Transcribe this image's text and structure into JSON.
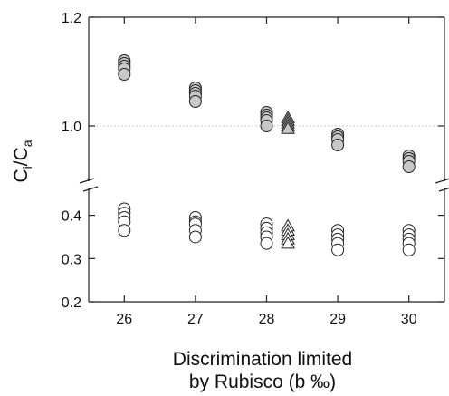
{
  "chart_data": {
    "type": "scatter",
    "title": "",
    "xlabel_line1": "Discrimination limited",
    "xlabel_line2": "by Rubisco (b ‰)",
    "ylabel_main": "C",
    "ylabel_sub1": "i",
    "ylabel_slash": "/C",
    "ylabel_sub2": "a",
    "x_ticks": [
      "26",
      "27",
      "28",
      "29",
      "30"
    ],
    "x_tick_values": [
      26,
      27,
      28,
      29,
      30
    ],
    "xlim": [
      25.5,
      30.5
    ],
    "upper_panel": {
      "ylim": [
        0.9,
        1.2
      ],
      "y_ticks": [
        "1.0",
        "1.2"
      ],
      "y_tick_values": [
        1.0,
        1.2
      ],
      "reference_line": 1.0
    },
    "lower_panel": {
      "ylim": [
        0.2,
        0.46
      ],
      "y_ticks": [
        "0.2",
        "0.3",
        "0.4"
      ],
      "y_tick_values": [
        0.2,
        0.3,
        0.4
      ]
    },
    "grid": false,
    "axis_break": true,
    "series": [
      {
        "marker": "circle",
        "fill": "#c8c8c8",
        "panel": "upper",
        "points": [
          [
            26,
            1.12
          ],
          [
            26,
            1.115
          ],
          [
            26,
            1.11
          ],
          [
            26,
            1.105
          ],
          [
            26,
            1.095
          ],
          [
            27,
            1.07
          ],
          [
            27,
            1.065
          ],
          [
            27,
            1.06
          ],
          [
            27,
            1.055
          ],
          [
            27,
            1.045
          ],
          [
            28,
            1.025
          ],
          [
            28,
            1.02
          ],
          [
            28,
            1.015
          ],
          [
            28,
            1.01
          ],
          [
            28,
            1.0
          ],
          [
            29,
            0.985
          ],
          [
            29,
            0.98
          ],
          [
            29,
            0.975
          ],
          [
            29,
            0.965
          ],
          [
            30,
            0.945
          ],
          [
            30,
            0.94
          ],
          [
            30,
            0.935
          ],
          [
            30,
            0.925
          ]
        ]
      },
      {
        "marker": "triangle",
        "fill": "#c8c8c8",
        "panel": "upper",
        "points": [
          [
            28.3,
            1.015
          ],
          [
            28.3,
            1.01
          ],
          [
            28.3,
            1.005
          ],
          [
            28.3,
            1.0
          ],
          [
            28.3,
            0.995
          ]
        ]
      },
      {
        "marker": "circle",
        "fill": "#ffffff",
        "panel": "lower",
        "points": [
          [
            26,
            0.415
          ],
          [
            26,
            0.405
          ],
          [
            26,
            0.395
          ],
          [
            26,
            0.385
          ],
          [
            26,
            0.365
          ],
          [
            27,
            0.395
          ],
          [
            27,
            0.385
          ],
          [
            27,
            0.38
          ],
          [
            27,
            0.365
          ],
          [
            27,
            0.35
          ],
          [
            28,
            0.38
          ],
          [
            28,
            0.37
          ],
          [
            28,
            0.36
          ],
          [
            28,
            0.35
          ],
          [
            28,
            0.335
          ],
          [
            29,
            0.365
          ],
          [
            29,
            0.355
          ],
          [
            29,
            0.345
          ],
          [
            29,
            0.335
          ],
          [
            29,
            0.32
          ],
          [
            30,
            0.365
          ],
          [
            30,
            0.355
          ],
          [
            30,
            0.345
          ],
          [
            30,
            0.335
          ],
          [
            30,
            0.32
          ]
        ]
      },
      {
        "marker": "triangle",
        "fill": "#ffffff",
        "panel": "lower",
        "points": [
          [
            28.3,
            0.375
          ],
          [
            28.3,
            0.365
          ],
          [
            28.3,
            0.355
          ],
          [
            28.3,
            0.345
          ],
          [
            28.3,
            0.335
          ]
        ]
      }
    ]
  }
}
